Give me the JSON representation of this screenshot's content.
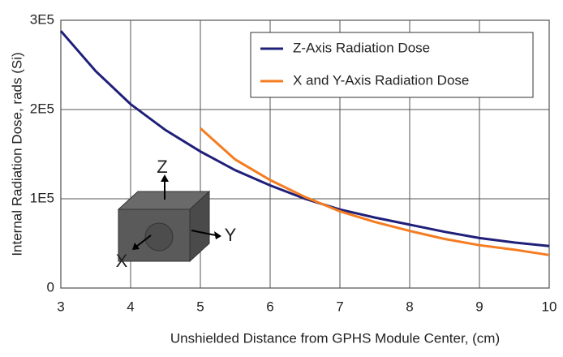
{
  "chart_data": {
    "type": "line",
    "x_label": "Unshielded Distance from GPHS Module Center, (cm)",
    "y_label": "Internal Radiation Dose, rads (Si)",
    "x": [
      3,
      3.5,
      4,
      4.5,
      5,
      5.5,
      6,
      6.5,
      7,
      7.5,
      8,
      8.5,
      9,
      9.5,
      10
    ],
    "series": [
      {
        "name": "Z-Axis Radiation Dose",
        "color": "#1f1f7a",
        "values": [
          288000,
          243000,
          206000,
          177000,
          153000,
          132000,
          115000,
          100000,
          88000,
          79000,
          71000,
          63000,
          56000,
          51000,
          47000
        ]
      },
      {
        "name": "X and Y-Axis Radiation Dose",
        "color": "#f57c20",
        "values": [
          null,
          null,
          null,
          null,
          179000,
          144000,
          121000,
          102000,
          86000,
          74000,
          64000,
          55000,
          48000,
          43000,
          37000
        ]
      }
    ],
    "xlim": [
      3,
      10
    ],
    "xticks": [
      3,
      4,
      5,
      6,
      7,
      8,
      9,
      10
    ],
    "ylim": [
      0,
      300000
    ],
    "yticks": [
      0,
      {
        "value": 100000,
        "label": "1E5"
      },
      {
        "value": 200000,
        "label": "2E5"
      },
      {
        "value": 300000,
        "label": "3E5"
      }
    ],
    "grid": true,
    "legend": "upper right",
    "annotations": [
      "Z",
      "Y",
      "X"
    ]
  }
}
